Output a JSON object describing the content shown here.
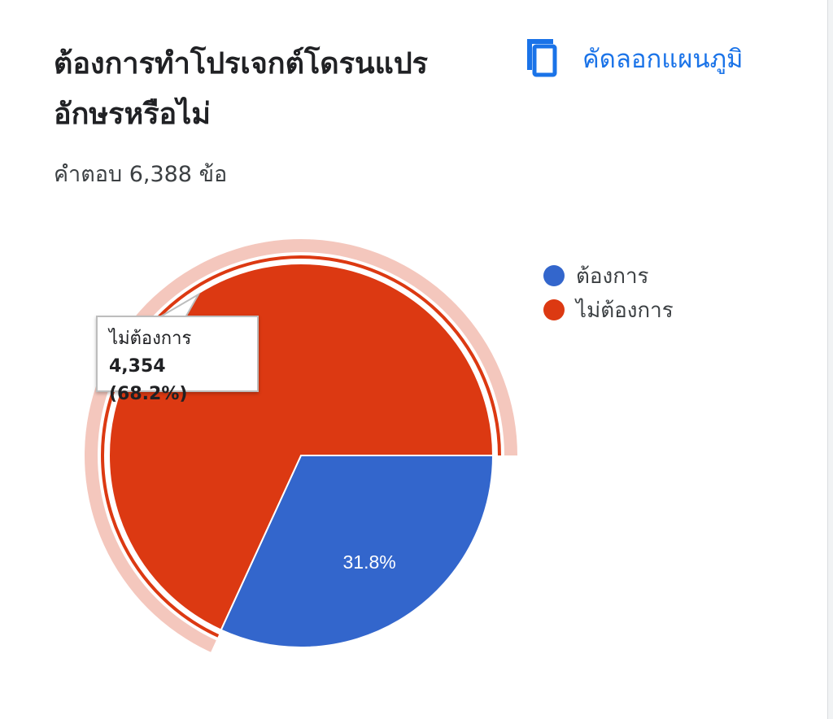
{
  "header": {
    "title": "ต้องการทำโปรเจกต์โดรนแปรอักษรหรือไม่",
    "copy_label": "คัดลอกแผนภูมิ",
    "response_count": "คำตอบ 6,388 ข้อ"
  },
  "tooltip": {
    "name": "ไม่ต้องการ",
    "value": "4,354 (68.2%)"
  },
  "colors": {
    "blue": "#3366cc",
    "red": "#dc3912",
    "highlight": "#f4c7bd",
    "accent": "#1a73e8"
  },
  "icons": {
    "copy": "copy-icon"
  },
  "chart_data": {
    "type": "pie",
    "categories": [
      "ต้องการ",
      "ไม่ต้องการ"
    ],
    "values": [
      2034,
      4354
    ],
    "percent_labels": [
      "31.8%",
      "68.2%"
    ],
    "colors": [
      "#3366cc",
      "#dc3912"
    ],
    "highlighted": "ไม่ต้องการ",
    "legend_position": "right"
  }
}
